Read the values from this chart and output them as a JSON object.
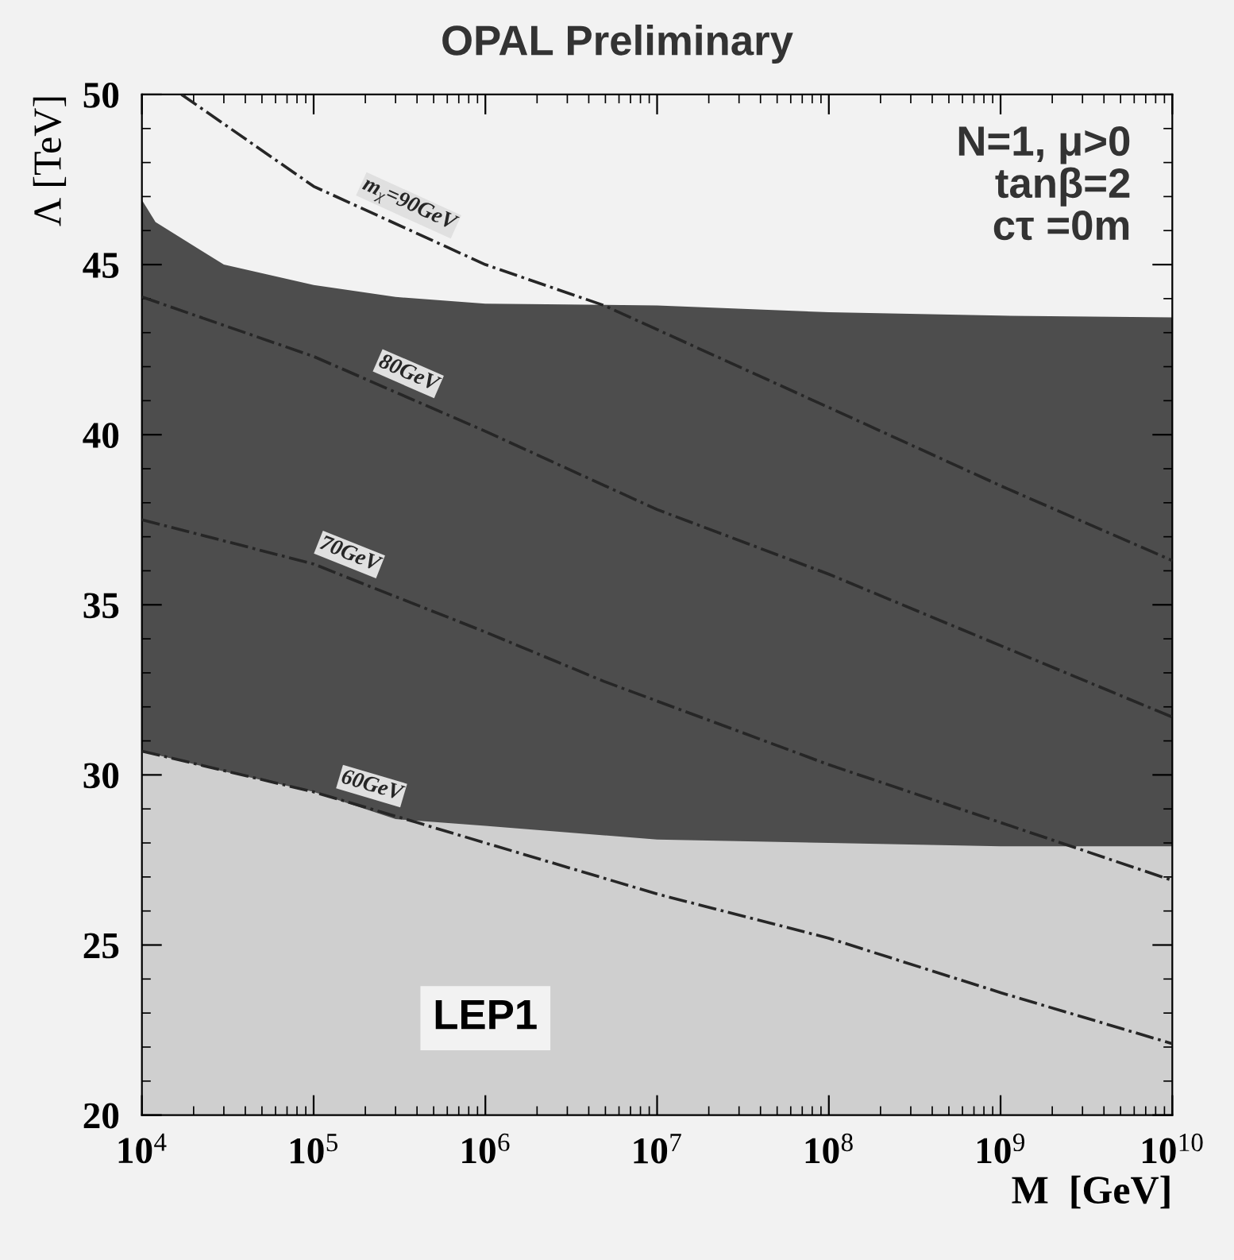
{
  "chart_data": {
    "type": "area",
    "title": "OPAL Preliminary",
    "xlabel": "M  [GeV]",
    "ylabel": "Λ [TeV]",
    "log": "x",
    "legend": false,
    "grid": false,
    "x": [
      10000,
      12000,
      30000,
      100000,
      300000,
      1000000,
      10000000,
      100000000,
      1000000000,
      10000000000
    ],
    "series": [
      {
        "color": "#4d4d4d",
        "values": [
          46.9,
          46.25,
          45.0,
          44.4,
          44.05,
          43.85,
          43.8,
          43.6,
          43.5,
          43.45
        ]
      },
      {
        "name": "LEP1",
        "color": "#cfcfcf",
        "values": [
          30.7,
          30.6,
          30.1,
          29.5,
          28.7,
          28.5,
          28.1,
          28.0,
          27.9,
          27.9
        ]
      },
      {
        "type": "line",
        "name": "m$_{χ}$=90GeV",
        "color": "#262626",
        "line_style": "dashdot",
        "x": [
          17000,
          100000,
          1000000,
          4900000,
          100000000,
          1000000000,
          10000000000
        ],
        "values": [
          50,
          47.3,
          45.0,
          43.8,
          40.8,
          38.5,
          36.3
        ]
      },
      {
        "type": "line",
        "name": "80GeV",
        "color": "#262626",
        "line_style": "dashdot",
        "x": [
          10000,
          100000,
          1000000,
          10000000,
          100000000,
          1000000000,
          10000000000
        ],
        "values": [
          44.05,
          42.3,
          40.1,
          37.8,
          35.9,
          33.8,
          31.7
        ]
      },
      {
        "type": "line",
        "name": "70GeV",
        "color": "#262626",
        "line_style": "dashdot",
        "x": [
          10000,
          100000,
          210000,
          1000000,
          4900000,
          100000000,
          1000000000,
          10000000000
        ],
        "values": [
          37.5,
          36.2,
          35.55,
          34.2,
          32.75,
          30.3,
          28.6,
          26.9
        ]
      },
      {
        "type": "line",
        "name": "60GeV",
        "color": "#262626",
        "line_style": "dashdot",
        "x": [
          10000,
          100000,
          400000,
          1000000,
          10000000,
          100000000,
          1000000000,
          10000000000
        ],
        "values": [
          30.7,
          29.5,
          28.6,
          28.0,
          26.5,
          25.2,
          23.6,
          22.1
        ]
      }
    ],
    "annotations": [
      "N=1, μ>0\ntanβ=2\ncτ =0m"
    ],
    "xlim": [
      10000,
      10000000000
    ],
    "xticks": [
      {
        "value": 10000,
        "label": "10$^{4}$"
      },
      {
        "value": 100000,
        "label": "10$^{5}$"
      },
      {
        "value": 1000000,
        "label": "10$^{6}$"
      },
      {
        "value": 10000000,
        "label": "10$^{7}$"
      },
      {
        "value": 100000000,
        "label": "10$^{8}$"
      },
      {
        "value": 1000000000,
        "label": "10$^{9}$"
      },
      {
        "value": 10000000000,
        "label": "10$^{10}$"
      }
    ],
    "ylim": [
      20,
      50
    ],
    "yticks": [
      20,
      25,
      30,
      35,
      40,
      45,
      50
    ]
  }
}
